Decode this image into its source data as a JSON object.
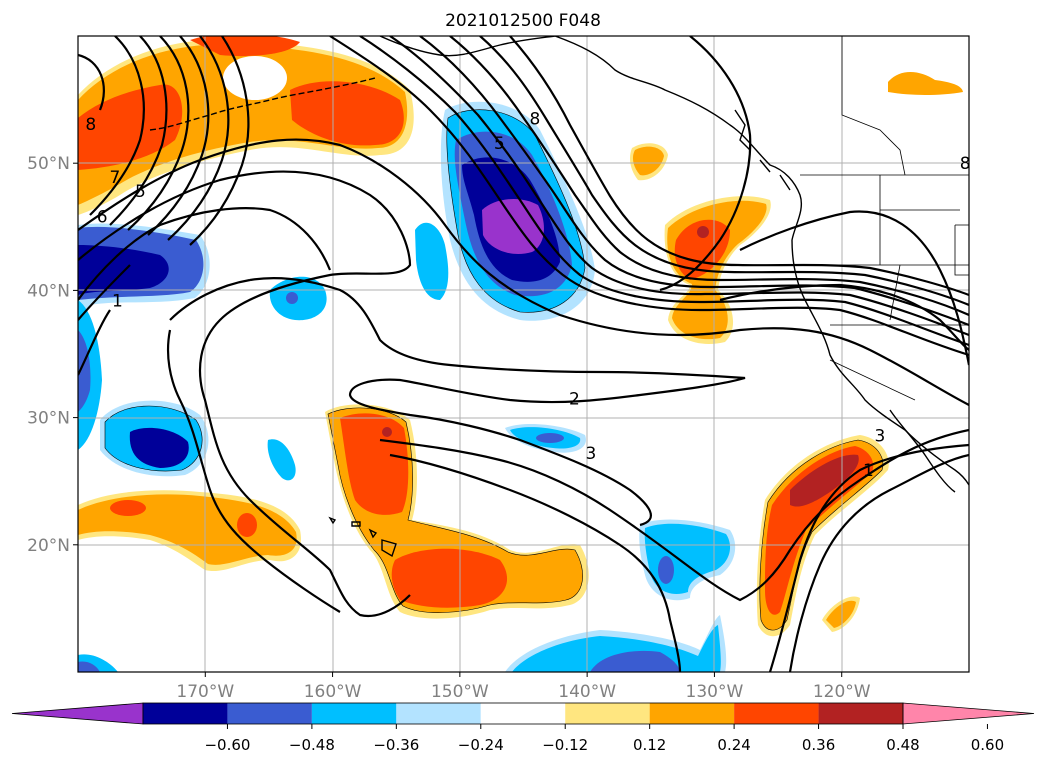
{
  "title": "2021012500 F048",
  "map": {
    "lon_range": [
      -180,
      -110
    ],
    "lat_range": [
      10,
      60
    ],
    "lon_ticks": [
      {
        "value": -170,
        "label": "170°W"
      },
      {
        "value": -160,
        "label": "160°W"
      },
      {
        "value": -150,
        "label": "150°W"
      },
      {
        "value": -140,
        "label": "140°W"
      },
      {
        "value": -130,
        "label": "130°W"
      },
      {
        "value": -120,
        "label": "120°W"
      }
    ],
    "lat_ticks": [
      {
        "value": 20,
        "label": "20°N"
      },
      {
        "value": 30,
        "label": "30°N"
      },
      {
        "value": 40,
        "label": "40°N"
      },
      {
        "value": 50,
        "label": "50°N"
      }
    ],
    "grid": true,
    "contour_labels": [
      {
        "text": "8",
        "lon": -179.0,
        "lat": 53.1
      },
      {
        "text": "7",
        "lon": -177.1,
        "lat": 48.9
      },
      {
        "text": "5",
        "lon": -175.1,
        "lat": 47.8
      },
      {
        "text": "6",
        "lon": -178.1,
        "lat": 45.8
      },
      {
        "text": "1",
        "lon": -176.9,
        "lat": 39.2
      },
      {
        "text": "5",
        "lon": -146.9,
        "lat": 51.6
      },
      {
        "text": "8",
        "lon": -144.1,
        "lat": 53.5
      },
      {
        "text": "2",
        "lon": -141.0,
        "lat": 31.5
      },
      {
        "text": "3",
        "lon": -139.7,
        "lat": 27.2
      },
      {
        "text": "3",
        "lon": -117.0,
        "lat": 28.6
      },
      {
        "text": "1",
        "lon": -117.9,
        "lat": 25.9
      },
      {
        "text": "8",
        "lon": -110.3,
        "lat": 50.0
      }
    ]
  },
  "colorbar": {
    "colors": [
      "#9933cc",
      "#000099",
      "#3a5cd1",
      "#00bfff",
      "#b3e3ff",
      "#ffffff",
      "#ffe680",
      "#ffa500",
      "#ff4500",
      "#b22222",
      "#ff85aa"
    ],
    "tick_labels": [
      "−0.60",
      "−0.48",
      "−0.36",
      "−0.24",
      "−0.12",
      "0.12",
      "0.24",
      "0.36",
      "0.48",
      "0.60"
    ]
  }
}
